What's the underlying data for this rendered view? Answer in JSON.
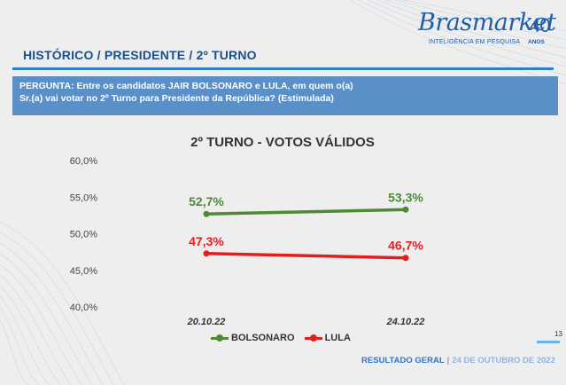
{
  "brand": {
    "name": "Brasmarket",
    "badge": "40",
    "tagline": "INTELIGÊNCIA EM PESQUISA",
    "badge_sub": "ANOS"
  },
  "section_title": "HISTÓRICO / PRESIDENTE / 2º TURNO",
  "question": {
    "line1": "PERGUNTA: Entre os candidatos JAIR BOLSONARO e LULA, em quem o(a)",
    "line2": "Sr.(a) vai votar no 2º Turno para Presidente da República? (Estimulada)"
  },
  "page_number": "13",
  "footer": {
    "label": "RESULTADO GERAL",
    "separator": "|",
    "date": "24 DE OUTUBRO DE 2022"
  },
  "colors": {
    "accent": "#2f7fd0",
    "question_bg": "#5a8fc8",
    "bolsonaro": "#4e8a34",
    "lula": "#e41e1e"
  },
  "chart_data": {
    "type": "line",
    "title": "2º TURNO - VOTOS VÁLIDOS",
    "categories": [
      "20.10.22",
      "24.10.22"
    ],
    "series": [
      {
        "name": "BOLSONARO",
        "values": [
          52.7,
          53.3
        ],
        "labels": [
          "52,7%",
          "53,3%"
        ],
        "color": "#4e8a34"
      },
      {
        "name": "LULA",
        "values": [
          47.3,
          46.7
        ],
        "labels": [
          "47,3%",
          "46,7%"
        ],
        "color": "#e41e1e"
      }
    ],
    "ylim": [
      40,
      60
    ],
    "yticks": [
      {
        "value": 60,
        "label": "60,0%"
      },
      {
        "value": 55,
        "label": "55,0%"
      },
      {
        "value": 50,
        "label": "50,0%"
      },
      {
        "value": 45,
        "label": "45,0%"
      },
      {
        "value": 40,
        "label": "40,0%"
      }
    ],
    "grid": false,
    "legend": "bottom"
  }
}
